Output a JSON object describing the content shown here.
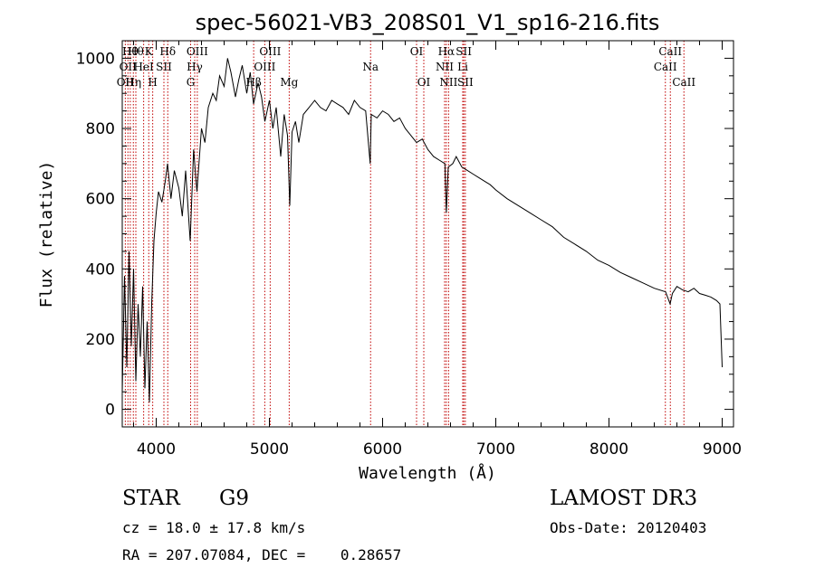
{
  "chart_data": {
    "type": "line",
    "title": "spec-56021-VB3_208S01_V1_sp16-216.fits",
    "xlabel": "Wavelength (Å)",
    "ylabel": "Flux (relative)",
    "xlim": [
      3700,
      9100
    ],
    "ylim": [
      -50,
      1050
    ],
    "xticks": [
      4000,
      5000,
      6000,
      7000,
      8000,
      9000
    ],
    "yticks": [
      0,
      200,
      400,
      600,
      800,
      1000
    ],
    "grid": false,
    "series": [
      {
        "name": "flux",
        "color": "#000000",
        "x": [
          3700,
          3720,
          3740,
          3760,
          3780,
          3800,
          3820,
          3840,
          3860,
          3880,
          3900,
          3920,
          3940,
          3960,
          3980,
          4000,
          4020,
          4050,
          4080,
          4100,
          4130,
          4160,
          4200,
          4230,
          4260,
          4300,
          4330,
          4360,
          4400,
          4430,
          4460,
          4500,
          4530,
          4560,
          4600,
          4630,
          4660,
          4700,
          4730,
          4760,
          4800,
          4830,
          4860,
          4900,
          4930,
          4960,
          5000,
          5030,
          5060,
          5100,
          5130,
          5160,
          5180,
          5200,
          5230,
          5260,
          5300,
          5350,
          5400,
          5450,
          5500,
          5550,
          5600,
          5650,
          5700,
          5750,
          5800,
          5850,
          5890,
          5900,
          5950,
          6000,
          6050,
          6100,
          6150,
          6200,
          6250,
          6300,
          6350,
          6400,
          6450,
          6500,
          6550,
          6563,
          6580,
          6620,
          6650,
          6700,
          6750,
          6800,
          6850,
          6900,
          6950,
          7000,
          7100,
          7200,
          7300,
          7400,
          7500,
          7600,
          7700,
          7800,
          7900,
          8000,
          8100,
          8200,
          8300,
          8400,
          8500,
          8540,
          8560,
          8600,
          8650,
          8700,
          8750,
          8800,
          8850,
          8900,
          8950,
          8980,
          9000
        ],
        "y": [
          50,
          380,
          120,
          450,
          180,
          400,
          80,
          300,
          150,
          350,
          60,
          250,
          20,
          300,
          480,
          560,
          620,
          590,
          650,
          700,
          600,
          680,
          630,
          550,
          680,
          480,
          740,
          620,
          800,
          760,
          860,
          900,
          880,
          950,
          920,
          1000,
          960,
          890,
          940,
          980,
          900,
          960,
          870,
          930,
          890,
          820,
          880,
          800,
          860,
          720,
          840,
          780,
          580,
          790,
          820,
          760,
          840,
          860,
          880,
          860,
          850,
          880,
          870,
          860,
          840,
          880,
          860,
          850,
          700,
          840,
          830,
          850,
          840,
          820,
          830,
          800,
          780,
          760,
          770,
          740,
          720,
          710,
          700,
          560,
          690,
          700,
          720,
          690,
          680,
          670,
          660,
          650,
          640,
          625,
          600,
          580,
          560,
          540,
          520,
          490,
          470,
          450,
          425,
          410,
          390,
          375,
          360,
          345,
          335,
          300,
          330,
          350,
          340,
          335,
          345,
          330,
          325,
          320,
          310,
          300,
          120
        ]
      }
    ],
    "line_labels": [
      {
        "wavelength": 3727,
        "label": "OII",
        "row": 2
      },
      {
        "wavelength": 3750,
        "label": "OII",
        "row": 1
      },
      {
        "wavelength": 3771,
        "label": "Hθ",
        "row": 0
      },
      {
        "wavelength": 3798,
        "label": "Hη",
        "row": 2
      },
      {
        "wavelength": 3820,
        "label": "Hθ",
        "row": 0
      },
      {
        "wavelength": 3889,
        "label": "HeI",
        "row": 1
      },
      {
        "wavelength": 3934,
        "label": "K",
        "row": 0
      },
      {
        "wavelength": 3969,
        "label": "H",
        "row": 2
      },
      {
        "wavelength": 4068,
        "label": "SII",
        "row": 1
      },
      {
        "wavelength": 4102,
        "label": "Hδ",
        "row": 0
      },
      {
        "wavelength": 4304,
        "label": "G",
        "row": 2
      },
      {
        "wavelength": 4340,
        "label": "Hγ",
        "row": 1
      },
      {
        "wavelength": 4363,
        "label": "OIII",
        "row": 0
      },
      {
        "wavelength": 4861,
        "label": "Hβ",
        "row": 2
      },
      {
        "wavelength": 4959,
        "label": "OIII",
        "row": 1
      },
      {
        "wavelength": 5007,
        "label": "OIII",
        "row": 0
      },
      {
        "wavelength": 5175,
        "label": "Mg",
        "row": 2
      },
      {
        "wavelength": 5894,
        "label": "Na",
        "row": 1
      },
      {
        "wavelength": 6300,
        "label": "OI",
        "row": 0
      },
      {
        "wavelength": 6364,
        "label": "OI",
        "row": 2
      },
      {
        "wavelength": 6548,
        "label": "NII",
        "row": 1
      },
      {
        "wavelength": 6563,
        "label": "Hα",
        "row": 0
      },
      {
        "wavelength": 6583,
        "label": "NII",
        "row": 2
      },
      {
        "wavelength": 6708,
        "label": "Li",
        "row": 1
      },
      {
        "wavelength": 6717,
        "label": "SII",
        "row": 0
      },
      {
        "wavelength": 6731,
        "label": "SII",
        "row": 2
      },
      {
        "wavelength": 8498,
        "label": "CaII",
        "row": 1
      },
      {
        "wavelength": 8542,
        "label": "CaII",
        "row": 0
      },
      {
        "wavelength": 8662,
        "label": "CaII",
        "row": 2
      }
    ]
  },
  "info": {
    "object_class": "STAR",
    "subclass": "G9",
    "survey": "LAMOST DR3",
    "cz": "cz = 18.0 ± 17.8 km/s",
    "obs_date": "Obs-Date: 20120403",
    "coords": "RA = 207.07084, DEC =    0.28657"
  }
}
